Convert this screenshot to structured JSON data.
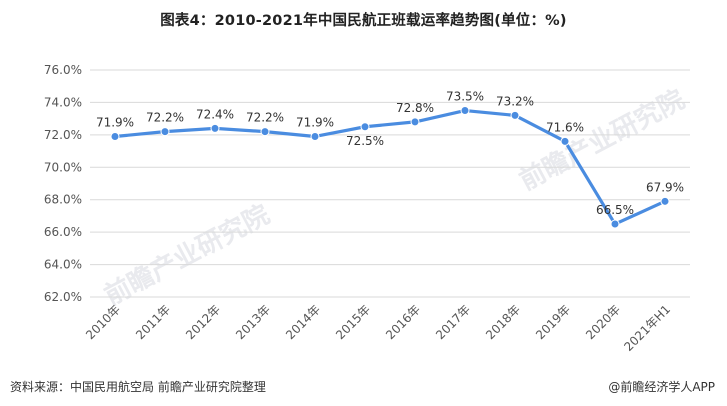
{
  "chart_data": {
    "type": "line",
    "title": "图表4：2010-2021年中国民航正班载运率趋势图(单位：%)",
    "categories": [
      "2010年",
      "2011年",
      "2012年",
      "2013年",
      "2014年",
      "2015年",
      "2016年",
      "2017年",
      "2018年",
      "2019年",
      "2020年",
      "2021年H1"
    ],
    "values": [
      71.9,
      72.2,
      72.4,
      72.2,
      71.9,
      72.5,
      72.8,
      73.5,
      73.2,
      71.6,
      66.5,
      67.9
    ],
    "data_labels": [
      "71.9%",
      "72.2%",
      "72.4%",
      "72.2%",
      "71.9%",
      "72.5%",
      "72.8%",
      "73.5%",
      "73.2%",
      "71.6%",
      "66.5%",
      "67.9%"
    ],
    "yticks": [
      "62.0%",
      "64.0%",
      "66.0%",
      "68.0%",
      "70.0%",
      "72.0%",
      "74.0%",
      "76.0%"
    ],
    "ylim": [
      62,
      76
    ],
    "grid": true,
    "color": "#4a8ce0"
  },
  "footer": {
    "source": "资料来源：中国民用航空局 前瞻产业研究院整理",
    "brand": "@前瞻经济学人APP"
  },
  "watermark": "前瞻产业研究院"
}
